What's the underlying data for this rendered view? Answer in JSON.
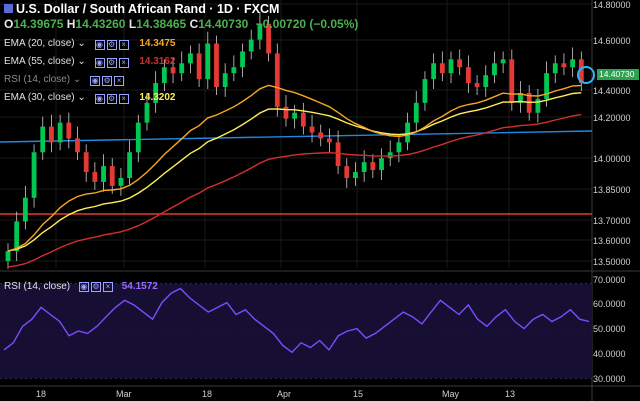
{
  "header": {
    "title": "U.S. Dollar / South African Rand · 1D · FXCM",
    "ohlc": [
      {
        "k": "O",
        "v": "14.39675"
      },
      {
        "k": "H",
        "v": "14.43260"
      },
      {
        "k": "L",
        "v": "14.38465"
      },
      {
        "k": "C",
        "v": "14.40730"
      }
    ],
    "change": "−0.00720 (−0.05%)"
  },
  "indicators": [
    {
      "label": "EMA (20, close)",
      "value": "14.3475",
      "color": "#f5a623"
    },
    {
      "label": "EMA (55, close)",
      "value": "14.3162",
      "color": "#d32f2f"
    },
    {
      "label": "RSI (14, close)",
      "value": "",
      "color": "#8a8a8a"
    },
    {
      "label": "EMA (30, close)",
      "value": "14.3202",
      "color": "#ffee58"
    }
  ],
  "price_axis": [
    "14.80000",
    "14.60000",
    "14.40000",
    "14.20000",
    "14.00000",
    "13.85000",
    "13.70000",
    "13.60000",
    "13.50000"
  ],
  "last_price": "14.40730",
  "time_axis": [
    "18",
    "Mar",
    "18",
    "Apr",
    "15",
    "May",
    "13"
  ],
  "rsi": {
    "label": "RSI (14, close)",
    "value": "54.1572",
    "axis": [
      "70.0000",
      "60.0000",
      "50.0000",
      "40.0000",
      "30.0000"
    ],
    "series": [
      42,
      45,
      52,
      55,
      60,
      57,
      54,
      48,
      50,
      49,
      52,
      56,
      60,
      63,
      61,
      58,
      55,
      62,
      66,
      68,
      64,
      61,
      58,
      60,
      62,
      57,
      59,
      55,
      52,
      49,
      44,
      41,
      45,
      43,
      46,
      42,
      48,
      50,
      51,
      47,
      49,
      52,
      55,
      58,
      56,
      53,
      58,
      63,
      60,
      57,
      61,
      55,
      52,
      56,
      59,
      54,
      51,
      55,
      57,
      54,
      56,
      59,
      55,
      54
    ]
  },
  "colors": {
    "up": "#00c853",
    "down": "#e53935",
    "ema20": "#f5a623",
    "ema30": "#ffee58",
    "ema55": "#d32f2f",
    "trend": "#1e88e5",
    "support": "#e53935",
    "rsi": "#7c4dff"
  }
}
